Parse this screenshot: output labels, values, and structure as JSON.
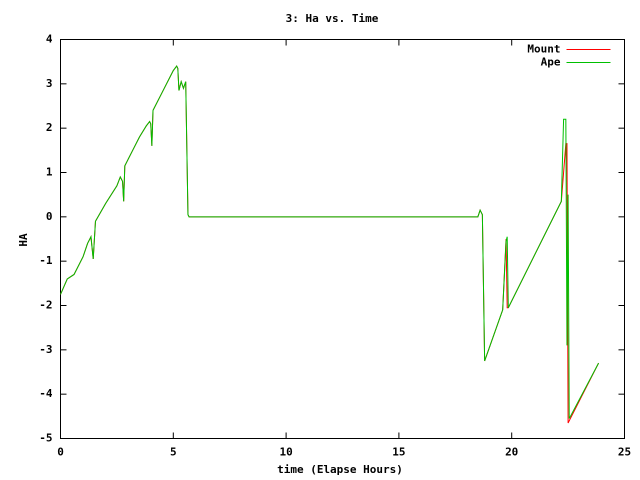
{
  "chart_data": {
    "type": "line",
    "title": "3: Ha vs. Time",
    "x_label": "time (Elapse Hours)",
    "y_label": "HA",
    "x": [
      0,
      0.3,
      0.6,
      1.0,
      1.2,
      1.35,
      1.45,
      1.55,
      2.0,
      2.5,
      2.65,
      2.75,
      2.8,
      2.85,
      3.2,
      3.5,
      3.8,
      3.95,
      4.0,
      4.05,
      4.1,
      4.5,
      5.0,
      5.15,
      5.2,
      5.25,
      5.35,
      5.45,
      5.55,
      5.65,
      5.7,
      18.5,
      18.6,
      18.7,
      18.8,
      19.6,
      19.75,
      19.8,
      19.85,
      22.2,
      22.3,
      22.4,
      22.45,
      22.5,
      22.55,
      23.85
    ],
    "series": [
      {
        "name": "Mount",
        "color": "#ff0000",
        "values": [
          -1.75,
          -1.4,
          -1.3,
          -0.9,
          -0.6,
          -0.45,
          -0.95,
          -0.1,
          0.3,
          0.7,
          0.9,
          0.8,
          0.35,
          1.15,
          1.5,
          1.8,
          2.05,
          2.15,
          2.1,
          1.6,
          2.4,
          2.8,
          3.3,
          3.4,
          3.35,
          2.85,
          3.05,
          2.9,
          3.05,
          0.05,
          0,
          0,
          0.15,
          0.05,
          -3.25,
          -2.1,
          -0.5,
          -2.05,
          -2.05,
          0.35,
          1.0,
          1.65,
          1.65,
          -4.65,
          -4.6,
          -3.3
        ]
      },
      {
        "name": "Ape",
        "color": "#00c000",
        "values": [
          -1.75,
          -1.4,
          -1.3,
          -0.9,
          -0.6,
          -0.45,
          -0.95,
          -0.1,
          0.3,
          0.7,
          0.9,
          0.8,
          0.35,
          1.15,
          1.5,
          1.8,
          2.05,
          2.15,
          2.1,
          1.6,
          2.4,
          2.8,
          3.3,
          3.4,
          3.35,
          2.85,
          3.05,
          2.9,
          3.05,
          0.05,
          0,
          0,
          0.15,
          0.05,
          -3.25,
          -2.1,
          -0.55,
          -0.45,
          -2.05,
          0.35,
          2.2,
          2.2,
          -2.9,
          0.5,
          -4.55,
          -3.3
        ]
      }
    ],
    "xlim": [
      0,
      25
    ],
    "xticks": [
      0,
      5,
      10,
      15,
      20,
      25
    ],
    "ylim": [
      -5,
      4
    ],
    "yticks": [
      -5,
      -4,
      -3,
      -2,
      -1,
      0,
      1,
      2,
      3,
      4
    ],
    "legend": "top-right",
    "grid": false
  }
}
